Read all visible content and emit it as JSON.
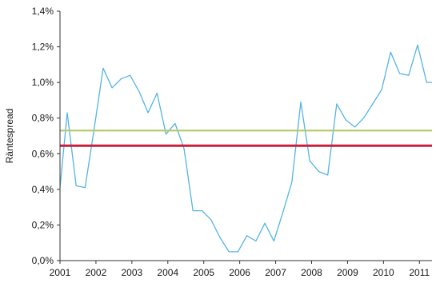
{
  "chart_data": {
    "type": "line",
    "title": "",
    "xlabel": "",
    "ylabel": "Räntespread",
    "ylim": [
      0,
      1.4
    ],
    "xlim": [
      2001,
      2011.35
    ],
    "y_ticks": [
      {
        "value": 0.0,
        "label": "0,0%"
      },
      {
        "value": 0.2,
        "label": "0,2%"
      },
      {
        "value": 0.4,
        "label": "0,4%"
      },
      {
        "value": 0.6,
        "label": "0,6%"
      },
      {
        "value": 0.8,
        "label": "0,8%"
      },
      {
        "value": 1.0,
        "label": "1,0%"
      },
      {
        "value": 1.2,
        "label": "1,2%"
      },
      {
        "value": 1.4,
        "label": "1,4%"
      }
    ],
    "x_ticks": [
      {
        "value": 2001,
        "label": "2001"
      },
      {
        "value": 2002,
        "label": "2002"
      },
      {
        "value": 2003,
        "label": "2003"
      },
      {
        "value": 2004,
        "label": "2004"
      },
      {
        "value": 2005,
        "label": "2005"
      },
      {
        "value": 2006,
        "label": "2006"
      },
      {
        "value": 2007,
        "label": "2007"
      },
      {
        "value": 2008,
        "label": "2008"
      },
      {
        "value": 2009,
        "label": "2009"
      },
      {
        "value": 2010,
        "label": "2010"
      },
      {
        "value": 2011,
        "label": "2011"
      }
    ],
    "grid": false,
    "legend": "none",
    "series": [
      {
        "color": "#55b4e4",
        "x": [
          2001.0,
          2001.2,
          2001.45,
          2001.7,
          2001.95,
          2002.2,
          2002.45,
          2002.7,
          2002.95,
          2003.2,
          2003.45,
          2003.7,
          2003.95,
          2004.2,
          2004.45,
          2004.7,
          2004.95,
          2005.2,
          2005.45,
          2005.7,
          2005.95,
          2006.2,
          2006.45,
          2006.7,
          2006.95,
          2007.2,
          2007.45,
          2007.7,
          2007.95,
          2008.2,
          2008.45,
          2008.7,
          2008.95,
          2009.2,
          2009.45,
          2009.7,
          2009.95,
          2010.2,
          2010.45,
          2010.7,
          2010.95,
          2011.2,
          2011.35
        ],
        "values": [
          0.41,
          0.83,
          0.42,
          0.41,
          0.74,
          1.08,
          0.97,
          1.02,
          1.04,
          0.95,
          0.83,
          0.94,
          0.71,
          0.77,
          0.63,
          0.28,
          0.28,
          0.23,
          0.13,
          0.05,
          0.05,
          0.14,
          0.11,
          0.21,
          0.11,
          0.27,
          0.44,
          0.89,
          0.56,
          0.5,
          0.48,
          0.88,
          0.79,
          0.75,
          0.8,
          0.88,
          0.96,
          1.17,
          1.05,
          1.04,
          1.21,
          1.0,
          1.0
        ]
      },
      {
        "color": "#b2c86a",
        "x": [
          2001,
          2011.35
        ],
        "values": [
          0.73,
          0.73
        ]
      },
      {
        "color": "#cc1f3b",
        "x": [
          2001,
          2011.35
        ],
        "values": [
          0.645,
          0.645
        ]
      }
    ]
  }
}
